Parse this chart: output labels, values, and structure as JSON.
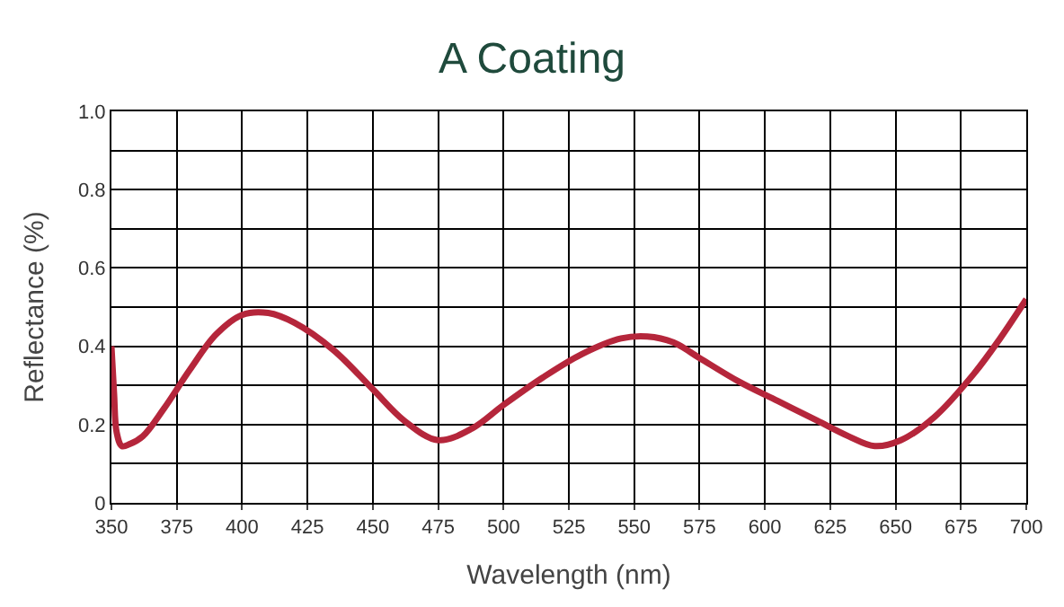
{
  "chart_data": {
    "type": "line",
    "title": "A Coating",
    "xlabel": "Wavelength (nm)",
    "ylabel": "Reflectance (%)",
    "x": [
      350,
      351,
      352,
      354,
      357,
      362,
      370,
      380,
      390,
      400,
      410,
      420,
      435,
      450,
      462,
      475,
      488,
      500,
      515,
      530,
      545,
      555,
      565,
      575,
      590,
      605,
      620,
      632,
      642,
      652,
      665,
      680,
      690,
      700
    ],
    "series": [
      {
        "color": "#b5263b",
        "values": [
          0.4,
          0.28,
          0.18,
          0.145,
          0.15,
          0.17,
          0.24,
          0.34,
          0.43,
          0.48,
          0.485,
          0.46,
          0.39,
          0.29,
          0.21,
          0.16,
          0.19,
          0.25,
          0.32,
          0.38,
          0.42,
          0.425,
          0.41,
          0.37,
          0.31,
          0.26,
          0.21,
          0.17,
          0.145,
          0.16,
          0.22,
          0.33,
          0.42,
          0.52
        ]
      }
    ],
    "xlim": [
      350,
      700
    ],
    "ylim": [
      0,
      1
    ],
    "xticks": [
      350,
      375,
      400,
      425,
      450,
      475,
      500,
      525,
      550,
      575,
      600,
      625,
      650,
      675,
      700
    ],
    "yticks": [
      0,
      {
        "value": 0.1,
        "label": null
      },
      0.2,
      {
        "value": 0.3,
        "label": null
      },
      0.4,
      {
        "value": 0.5,
        "label": null
      },
      0.6,
      {
        "value": 0.7,
        "label": null
      },
      0.8,
      {
        "value": 0.9,
        "label": null
      },
      {
        "value": 1,
        "label": "1.0"
      }
    ],
    "grid": true,
    "line_style": "solid",
    "marker": "none"
  }
}
